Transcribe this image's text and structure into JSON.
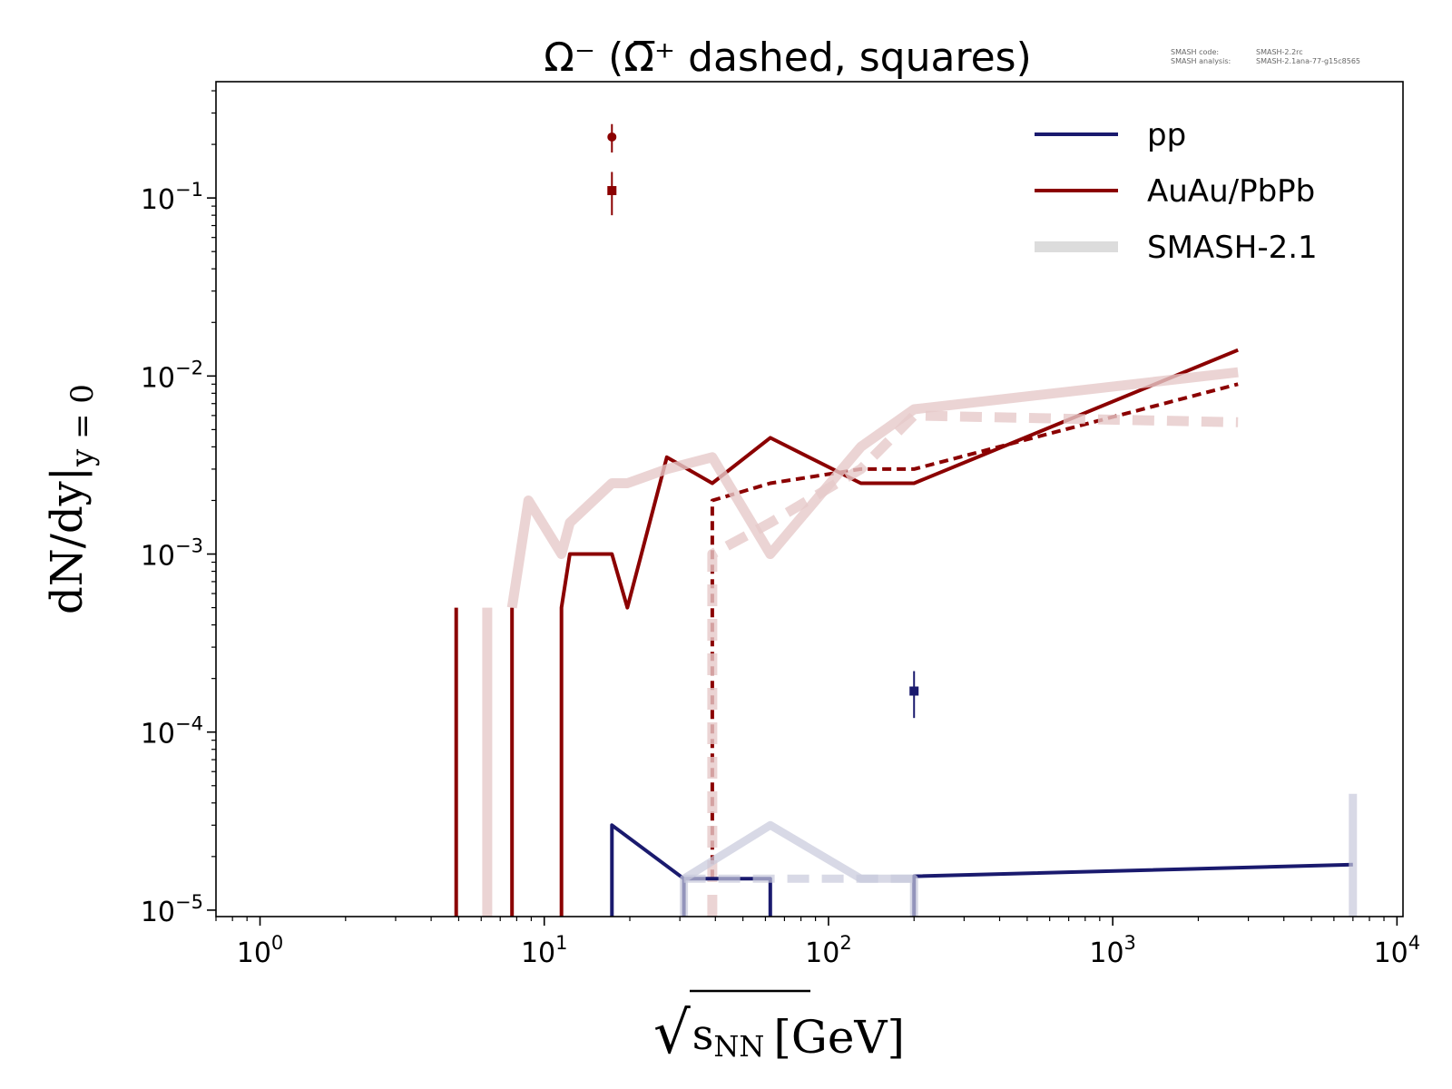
{
  "chart_data": {
    "type": "line",
    "title": "Ω⁻ (Ω̅⁺ dashed, squares)",
    "xlabel": {
      "root": "√",
      "base": "s",
      "sub": "NN",
      "unit": "[GeV]"
    },
    "ylabel": {
      "main": "dN/dy|",
      "sub": "y = 0"
    },
    "x_scale": "log",
    "y_scale": "log",
    "xlim": [
      0.7,
      10500
    ],
    "ylim": [
      9.2e-06,
      0.45
    ],
    "x_ticks": [
      {
        "base": "10",
        "exp": "0",
        "value": 1
      },
      {
        "base": "10",
        "exp": "1",
        "value": 10
      },
      {
        "base": "10",
        "exp": "2",
        "value": 100
      },
      {
        "base": "10",
        "exp": "3",
        "value": 1000
      },
      {
        "base": "10",
        "exp": "4",
        "value": 10000
      }
    ],
    "y_ticks": [
      {
        "base": "10",
        "exp": "−1",
        "value": 0.1
      },
      {
        "base": "10",
        "exp": "−2",
        "value": 0.01
      },
      {
        "base": "10",
        "exp": "−3",
        "value": 0.001
      },
      {
        "base": "10",
        "exp": "−4",
        "value": 0.0001
      },
      {
        "base": "10",
        "exp": "−5",
        "value": 1e-05
      }
    ],
    "grid": false,
    "legend_position": "top-right",
    "legend": [
      {
        "label": "pp",
        "color": "#1a1a6e",
        "style": "solid"
      },
      {
        "label": "AuAu/PbPb",
        "color": "#8b0000",
        "style": "solid"
      },
      {
        "label": "SMASH-2.1",
        "color": "#dcdcdc",
        "style": "thick"
      }
    ],
    "version_info": [
      {
        "key": "SMASH code:",
        "value": "SMASH-2.2rc"
      },
      {
        "key": "SMASH analysis:",
        "value": "SMASH-2.1ana-77-g15c8565"
      }
    ],
    "series": [
      {
        "name": "AuAu/PbPb",
        "role": "heavy-ion-current-omega-minus",
        "color": "#8b0000",
        "dash": "solid",
        "width": 4,
        "opacity": 1,
        "segments": [
          [
            [
              4.9,
              9.2e-06
            ],
            [
              4.9,
              0.0005
            ]
          ],
          [
            [
              7.7,
              9.2e-06
            ],
            [
              7.7,
              0.0005
            ]
          ],
          [
            [
              11.5,
              9.2e-06
            ],
            [
              11.5,
              0.0005
            ],
            [
              12.3,
              0.001
            ],
            [
              17.3,
              0.001
            ],
            [
              19.6,
              0.0005
            ],
            [
              27,
              0.0035
            ],
            [
              39,
              0.0025
            ],
            [
              62.4,
              0.0045
            ],
            [
              130,
              0.0025
            ],
            [
              200,
              0.0025
            ],
            [
              2760,
              0.014
            ]
          ]
        ]
      },
      {
        "name": "AuAu/PbPb",
        "role": "heavy-ion-current-omega-plus-bar",
        "color": "#8b0000",
        "dash": "10,6",
        "width": 4,
        "opacity": 1,
        "segments": [
          [
            [
              39,
              1.5e-05
            ],
            [
              39,
              0.002
            ],
            [
              62.4,
              0.0025
            ],
            [
              130,
              0.003
            ],
            [
              200,
              0.003
            ],
            [
              2760,
              0.009
            ]
          ]
        ]
      },
      {
        "name": "SMASH-2.1",
        "role": "heavy-ion-reference-omega-minus",
        "color": "#e6c9c9",
        "dash": "solid",
        "width": 11,
        "opacity": 0.8,
        "segments": [
          [
            [
              6.3,
              9.2e-06
            ],
            [
              6.3,
              0.0005
            ]
          ],
          [
            [
              7.7,
              0.0005
            ],
            [
              8.8,
              0.002
            ],
            [
              11.5,
              0.001
            ],
            [
              12.3,
              0.0015
            ],
            [
              17.3,
              0.0025
            ],
            [
              19.6,
              0.0025
            ],
            [
              27,
              0.003
            ],
            [
              39,
              0.0035
            ],
            [
              62.4,
              0.001
            ],
            [
              130,
              0.004
            ],
            [
              200,
              0.0065
            ],
            [
              2760,
              0.0105
            ]
          ]
        ]
      },
      {
        "name": "SMASH-2.1",
        "role": "heavy-ion-reference-omega-plus-bar",
        "color": "#e6c9c9",
        "dash": "24,14",
        "width": 11,
        "opacity": 0.8,
        "segments": [
          [
            [
              39,
              9.2e-06
            ],
            [
              39,
              0.001
            ],
            [
              62.4,
              0.0015
            ],
            [
              130,
              0.003
            ],
            [
              200,
              0.006
            ],
            [
              2760,
              0.0055
            ]
          ]
        ]
      },
      {
        "name": "pp",
        "role": "pp-current",
        "color": "#1a1a6e",
        "dash": "solid",
        "width": 4,
        "opacity": 1,
        "segments": [
          [
            [
              17.3,
              9.2e-06
            ],
            [
              17.3,
              3e-05
            ],
            [
              31,
              1.5e-05
            ],
            [
              31,
              9.2e-06
            ]
          ],
          [
            [
              31,
              1.5e-05
            ],
            [
              62.4,
              1.5e-05
            ],
            [
              62.4,
              9.2e-06
            ]
          ],
          [
            [
              200,
              9.2e-06
            ],
            [
              200,
              1.55e-05
            ],
            [
              7000,
              1.8e-05
            ]
          ]
        ]
      },
      {
        "name": "SMASH-2.1",
        "role": "pp-reference",
        "color": "#c7c9dc",
        "dash": "solid",
        "width": 9,
        "opacity": 0.7,
        "segments": [
          [
            [
              31,
              9.2e-06
            ],
            [
              31,
              1.5e-05
            ],
            [
              62.4,
              3e-05
            ],
            [
              130,
              1.5e-05
            ],
            [
              200,
              1.5e-05
            ],
            [
              200,
              9.2e-06
            ]
          ],
          [
            [
              7000,
              9.2e-06
            ],
            [
              7000,
              4.5e-05
            ]
          ]
        ]
      },
      {
        "name": "SMASH-2.1",
        "role": "pp-reference-dashed",
        "color": "#c7c9dc",
        "dash": "24,14",
        "width": 9,
        "opacity": 0.7,
        "segments": [
          [
            [
              31,
              1.5e-05
            ],
            [
              200,
              1.5e-05
            ]
          ]
        ]
      }
    ],
    "measurements": [
      {
        "group": "AuAu/PbPb",
        "x": 17.3,
        "y": 0.22,
        "yerr_low": 0.18,
        "yerr_high": 0.26,
        "marker": "circle",
        "color": "#8b0000"
      },
      {
        "group": "AuAu/PbPb",
        "x": 17.3,
        "y": 0.11,
        "yerr_low": 0.08,
        "yerr_high": 0.14,
        "marker": "square",
        "color": "#8b0000"
      },
      {
        "group": "pp",
        "x": 200,
        "y": 0.00017,
        "yerr_low": 0.00012,
        "yerr_high": 0.00022,
        "marker": "square",
        "color": "#1a1a6e"
      }
    ]
  }
}
